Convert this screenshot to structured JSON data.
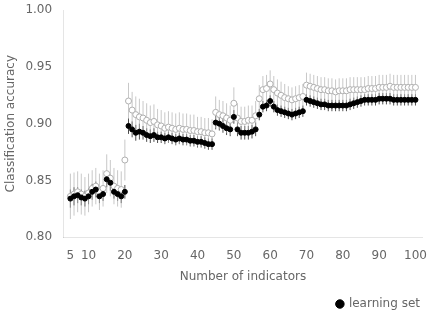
{
  "chart_data": {
    "type": "scatter",
    "xlabel": "Number of indicators",
    "ylabel": "Classification accuracy",
    "x": [
      5,
      6,
      7,
      8,
      9,
      10,
      11,
      12,
      13,
      14,
      15,
      16,
      17,
      18,
      19,
      20,
      21,
      22,
      23,
      24,
      25,
      26,
      27,
      28,
      29,
      30,
      31,
      32,
      33,
      34,
      35,
      36,
      37,
      38,
      39,
      40,
      41,
      42,
      43,
      44,
      45,
      46,
      47,
      48,
      49,
      50,
      51,
      52,
      53,
      54,
      55,
      56,
      57,
      58,
      59,
      60,
      61,
      62,
      63,
      64,
      65,
      66,
      67,
      68,
      69,
      70,
      71,
      72,
      73,
      74,
      75,
      76,
      77,
      78,
      79,
      80,
      81,
      82,
      83,
      84,
      85,
      86,
      87,
      88,
      89,
      90,
      91,
      92,
      93,
      94,
      95,
      96,
      97,
      98,
      99,
      100
    ],
    "series": [
      {
        "color": "#b0b0b0",
        "marker": "circle_open",
        "values": [
          0.836,
          0.838,
          0.84,
          0.838,
          0.836,
          0.839,
          0.843,
          0.845,
          0.84,
          0.843,
          0.856,
          0.852,
          0.845,
          0.843,
          0.842,
          0.868,
          0.92,
          0.912,
          0.908,
          0.906,
          0.905,
          0.903,
          0.901,
          0.902,
          0.899,
          0.898,
          0.896,
          0.897,
          0.896,
          0.895,
          0.896,
          0.895,
          0.895,
          0.894,
          0.894,
          0.893,
          0.893,
          0.892,
          0.892,
          0.891,
          0.91,
          0.908,
          0.907,
          0.905,
          0.903,
          0.918,
          0.905,
          0.902,
          0.902,
          0.903,
          0.903,
          0.907,
          0.922,
          0.93,
          0.931,
          0.935,
          0.93,
          0.927,
          0.925,
          0.923,
          0.922,
          0.921,
          0.922,
          0.923,
          0.924,
          0.934,
          0.933,
          0.932,
          0.931,
          0.93,
          0.93,
          0.929,
          0.929,
          0.928,
          0.929,
          0.929,
          0.929,
          0.93,
          0.93,
          0.93,
          0.93,
          0.93,
          0.931,
          0.931,
          0.931,
          0.932,
          0.932,
          0.932,
          0.933,
          0.932,
          0.932,
          0.932,
          0.932,
          0.932,
          0.932,
          0.932
        ],
        "errors": [
          0.02,
          0.019,
          0.018,
          0.018,
          0.017,
          0.017,
          0.016,
          0.016,
          0.016,
          0.016,
          0.017,
          0.016,
          0.016,
          0.016,
          0.016,
          0.018,
          0.016,
          0.016,
          0.016,
          0.016,
          0.015,
          0.015,
          0.015,
          0.015,
          0.014,
          0.014,
          0.014,
          0.014,
          0.014,
          0.014,
          0.014,
          0.014,
          0.014,
          0.014,
          0.014,
          0.013,
          0.013,
          0.013,
          0.013,
          0.013,
          0.014,
          0.013,
          0.013,
          0.013,
          0.013,
          0.014,
          0.013,
          0.013,
          0.013,
          0.013,
          0.013,
          0.013,
          0.012,
          0.012,
          0.012,
          0.012,
          0.012,
          0.012,
          0.012,
          0.012,
          0.011,
          0.011,
          0.011,
          0.011,
          0.011,
          0.011,
          0.011,
          0.011,
          0.011,
          0.011,
          0.011,
          0.011,
          0.011,
          0.011,
          0.011,
          0.011,
          0.011,
          0.011,
          0.011,
          0.011,
          0.011,
          0.011,
          0.011,
          0.011,
          0.011,
          0.011,
          0.011,
          0.011,
          0.011,
          0.011,
          0.011,
          0.011,
          0.011,
          0.011,
          0.011,
          0.011
        ]
      },
      {
        "name": "learning set",
        "color": "#000000",
        "marker": "circle",
        "values": [
          0.834,
          0.836,
          0.837,
          0.835,
          0.834,
          0.836,
          0.84,
          0.842,
          0.836,
          0.838,
          0.851,
          0.848,
          0.84,
          0.838,
          0.836,
          0.84,
          0.898,
          0.895,
          0.892,
          0.893,
          0.892,
          0.89,
          0.889,
          0.89,
          0.888,
          0.888,
          0.887,
          0.888,
          0.887,
          0.886,
          0.887,
          0.886,
          0.886,
          0.885,
          0.885,
          0.884,
          0.884,
          0.883,
          0.882,
          0.882,
          0.901,
          0.9,
          0.898,
          0.896,
          0.895,
          0.906,
          0.895,
          0.892,
          0.892,
          0.892,
          0.893,
          0.895,
          0.908,
          0.915,
          0.916,
          0.92,
          0.915,
          0.912,
          0.911,
          0.91,
          0.909,
          0.908,
          0.909,
          0.91,
          0.911,
          0.921,
          0.92,
          0.919,
          0.918,
          0.917,
          0.917,
          0.916,
          0.916,
          0.916,
          0.916,
          0.916,
          0.916,
          0.917,
          0.918,
          0.919,
          0.92,
          0.921,
          0.921,
          0.921,
          0.921,
          0.922,
          0.922,
          0.922,
          0.922,
          0.921,
          0.921,
          0.921,
          0.921,
          0.921,
          0.921,
          0.921
        ],
        "errors": [
          0.008,
          0.008,
          0.007,
          0.007,
          0.007,
          0.007,
          0.007,
          0.007,
          0.006,
          0.006,
          0.007,
          0.007,
          0.006,
          0.006,
          0.006,
          0.006,
          0.007,
          0.007,
          0.007,
          0.007,
          0.006,
          0.006,
          0.006,
          0.006,
          0.005,
          0.005,
          0.005,
          0.005,
          0.005,
          0.005,
          0.005,
          0.005,
          0.005,
          0.005,
          0.005,
          0.005,
          0.005,
          0.005,
          0.005,
          0.005,
          0.006,
          0.006,
          0.006,
          0.006,
          0.006,
          0.006,
          0.006,
          0.006,
          0.006,
          0.006,
          0.006,
          0.006,
          0.005,
          0.005,
          0.005,
          0.005,
          0.005,
          0.005,
          0.005,
          0.005,
          0.005,
          0.005,
          0.005,
          0.005,
          0.005,
          0.005,
          0.005,
          0.005,
          0.005,
          0.005,
          0.005,
          0.005,
          0.005,
          0.005,
          0.005,
          0.005,
          0.005,
          0.005,
          0.005,
          0.005,
          0.005,
          0.005,
          0.005,
          0.005,
          0.005,
          0.005,
          0.005,
          0.005,
          0.005,
          0.005,
          0.005,
          0.005,
          0.005,
          0.005,
          0.005,
          0.005
        ]
      }
    ],
    "xlim": [
      3,
      102
    ],
    "ylim": [
      0.8,
      1.0
    ],
    "xticks": [
      5,
      10,
      20,
      30,
      40,
      50,
      60,
      70,
      80,
      90,
      100
    ],
    "yticks": [
      {
        "value": 0.8,
        "label": "0.80"
      },
      0.85,
      {
        "value": 0.9,
        "label": "0.90"
      },
      0.95,
      {
        "value": 1.0,
        "label": "1.00"
      }
    ],
    "grid": false,
    "legend": "lower right"
  }
}
